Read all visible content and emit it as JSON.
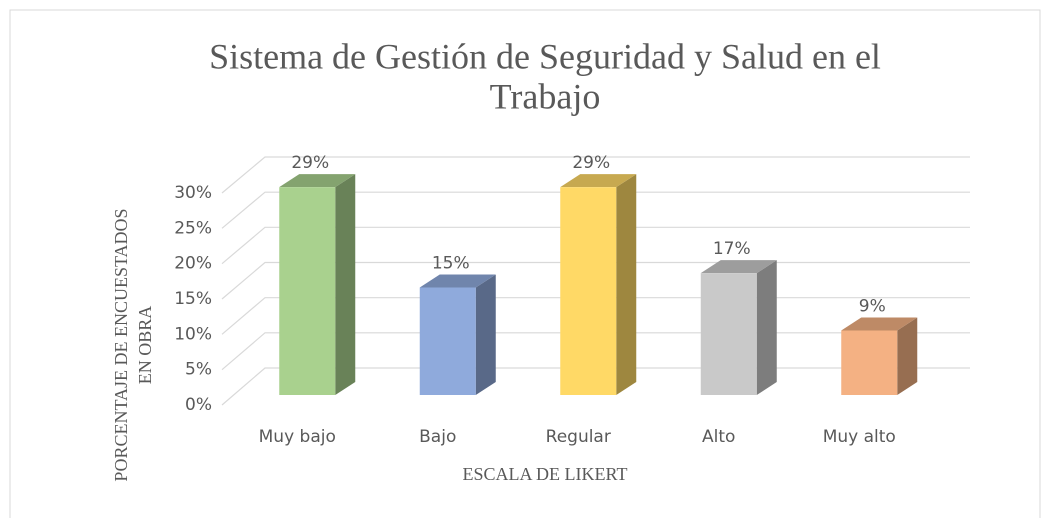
{
  "chart_data": {
    "type": "bar3d",
    "title": [
      "Sistema de Gestión de Seguridad y Salud en el",
      "Trabajo"
    ],
    "x_label": "ESCALA DE LIKERT",
    "y_label": [
      "PORCENTAJE DE ENCUESTADOS",
      "EN OBRA"
    ],
    "categories": [
      "Muy bajo",
      "Bajo",
      "Regular",
      "Alto",
      "Muy alto"
    ],
    "values": [
      29,
      15,
      29,
      17,
      9
    ],
    "value_labels": [
      "29%",
      "15%",
      "29%",
      "17%",
      "9%"
    ],
    "colors": [
      "#a9d18e",
      "#8faadc",
      "#ffd966",
      "#c9c9c9",
      "#f4b183"
    ],
    "ylim": [
      0,
      30
    ],
    "yticks": [
      {
        "value": 0,
        "label": "0%"
      },
      {
        "value": 5,
        "label": "5%"
      },
      {
        "value": 10,
        "label": "10%"
      },
      {
        "value": 15,
        "label": "15%"
      },
      {
        "value": 20,
        "label": "20%"
      },
      {
        "value": 25,
        "label": "25%"
      },
      {
        "value": 30,
        "label": "30%"
      }
    ],
    "grid": true
  }
}
